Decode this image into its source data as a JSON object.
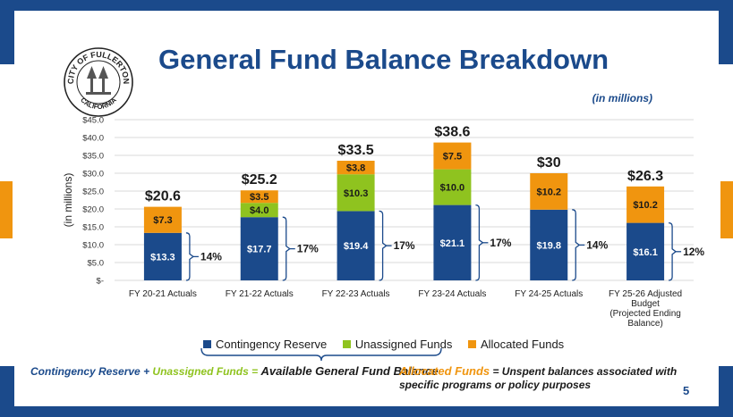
{
  "slide": {
    "title": "General Fund Balance Breakdown",
    "units_note": "(in millions)",
    "page_number": "5",
    "logo": {
      "top_text": "CITY OF FULLERTON",
      "bottom_text": "CALIFORNIA"
    }
  },
  "legend": {
    "contingency": "Contingency Reserve",
    "unassigned": "Unassigned Funds",
    "allocated": "Allocated Funds"
  },
  "footer": {
    "left_contingency": "Contingency Reserve",
    "plus": "+",
    "left_unassigned": "Unassigned Funds",
    "equals": "=",
    "left_result": "Available General Fund Balance",
    "right_allocated": "Allocated Funds",
    "right_text": "= Unspent balances associated with specific programs or policy purposes"
  },
  "colors": {
    "contingency": "#1b4a8b",
    "unassigned": "#8fc31f",
    "allocated": "#f0950f",
    "title": "#1b4a8b"
  },
  "chart_data": {
    "type": "bar",
    "stacked": true,
    "ylabel": "(in millions)",
    "ylim": [
      0,
      45
    ],
    "yticks": [
      0,
      5,
      10,
      15,
      20,
      25,
      30,
      35,
      40,
      45
    ],
    "ytick_labels": [
      "$-",
      "$5.0",
      "$10.0",
      "$15.0",
      "$20.0",
      "$25.0",
      "$30.0",
      "$35.0",
      "$40.0",
      "$45.0"
    ],
    "grid": true,
    "categories": [
      [
        "FY 20-21 Actuals"
      ],
      [
        "FY 21-22 Actuals"
      ],
      [
        "FY 22-23 Actuals"
      ],
      [
        "FY 23-24 Actuals"
      ],
      [
        "FY 24-25 Actuals"
      ],
      [
        "FY 25-26 Adjusted",
        "Budget",
        "(Projected Ending",
        "Balance)"
      ]
    ],
    "series": [
      {
        "name": "Contingency Reserve",
        "values": [
          13.3,
          17.7,
          19.4,
          21.1,
          19.8,
          16.1
        ],
        "labels": [
          "$13.3",
          "$17.7",
          "$19.4",
          "$21.1",
          "$19.8",
          "$16.1"
        ]
      },
      {
        "name": "Unassigned Funds",
        "values": [
          0,
          4.0,
          10.3,
          10.0,
          0,
          0
        ],
        "labels": [
          "",
          "$4.0",
          "$10.3",
          "$10.0",
          "",
          ""
        ]
      },
      {
        "name": "Allocated Funds",
        "values": [
          7.3,
          3.5,
          3.8,
          7.5,
          10.2,
          10.2
        ],
        "labels": [
          "$7.3",
          "$3.5",
          "$3.8",
          "$7.5",
          "$10.2",
          "$10.2"
        ]
      }
    ],
    "totals": [
      "$20.6",
      "$25.2",
      "$33.5",
      "$38.6",
      "$30",
      "$26.3"
    ],
    "reserve_pct": [
      "14%",
      "17%",
      "17%",
      "17%",
      "14%",
      "12%"
    ]
  }
}
